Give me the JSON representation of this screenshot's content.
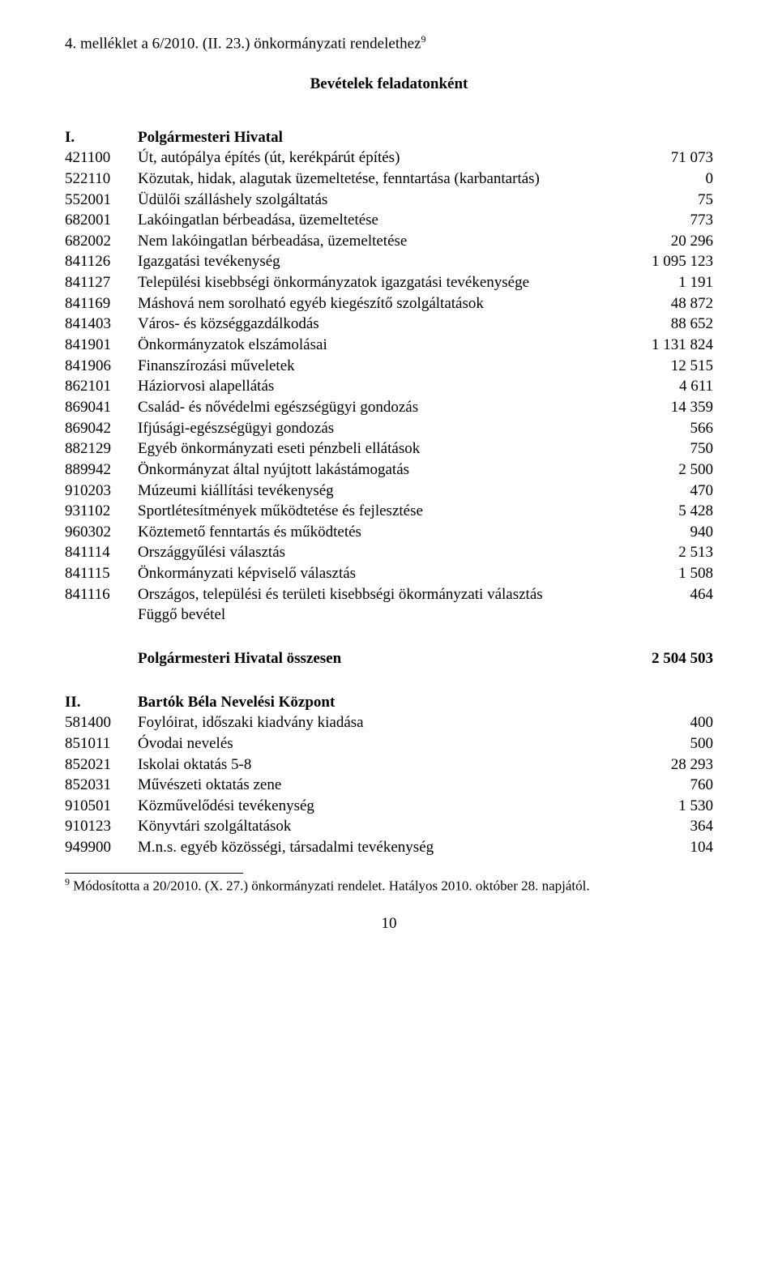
{
  "header": {
    "annex_title": "4. melléklet a 6/2010. (II. 23.) önkormányzati rendelethez",
    "annex_sup": "9",
    "subtitle": "Bevételek feladatonként"
  },
  "section1": {
    "roman": "I.",
    "heading": "Polgármesteri Hivatal",
    "rows": [
      {
        "code": "421100",
        "desc": "Út, autópálya építés (út, kerékpárút építés)",
        "val": "71 073"
      },
      {
        "code": "522110",
        "desc": "Közutak, hidak, alagutak üzemeltetése, fenntartása (karbantartás)",
        "val": "0"
      },
      {
        "code": "552001",
        "desc": "Üdülői szálláshely szolgáltatás",
        "val": "75"
      },
      {
        "code": "682001",
        "desc": "Lakóingatlan bérbeadása, üzemeltetése",
        "val": "773"
      },
      {
        "code": "682002",
        "desc": "Nem lakóingatlan bérbeadása, üzemeltetése",
        "val": "20 296"
      },
      {
        "code": "841126",
        "desc": "Igazgatási tevékenység",
        "val": "1 095 123"
      },
      {
        "code": "841127",
        "desc": "Települési kisebbségi önkormányzatok igazgatási tevékenysége",
        "val": "1 191"
      },
      {
        "code": "841169",
        "desc": "Máshová nem sorolható egyéb kiegészítő szolgáltatások",
        "val": "48 872"
      },
      {
        "code": "841403",
        "desc": "Város- és községgazdálkodás",
        "val": "88 652"
      },
      {
        "code": "841901",
        "desc": "Önkormányzatok elszámolásai",
        "val": "1 131 824"
      },
      {
        "code": "841906",
        "desc": "Finanszírozási műveletek",
        "val": "12 515"
      },
      {
        "code": "862101",
        "desc": "Háziorvosi alapellátás",
        "val": "4 611"
      },
      {
        "code": "869041",
        "desc": "Család- és nővédelmi egészségügyi gondozás",
        "val": "14 359"
      },
      {
        "code": "869042",
        "desc": "Ifjúsági-egészségügyi gondozás",
        "val": "566"
      },
      {
        "code": "882129",
        "desc": "Egyéb önkormányzati eseti pénzbeli ellátások",
        "val": "750"
      },
      {
        "code": "889942",
        "desc": "Önkormányzat által nyújtott lakástámogatás",
        "val": "2 500"
      },
      {
        "code": "910203",
        "desc": "Múzeumi kiállítási tevékenység",
        "val": "470"
      },
      {
        "code": "931102",
        "desc": "Sportlétesítmények működtetése és fejlesztése",
        "val": "5 428"
      },
      {
        "code": "960302",
        "desc": "Köztemető fenntartás és működtetés",
        "val": "940"
      },
      {
        "code": "841114",
        "desc": "Országgyűlési választás",
        "val": "2 513"
      },
      {
        "code": "841115",
        "desc": "Önkormányzati képviselő választás",
        "val": "1 508"
      },
      {
        "code": "841116",
        "desc": "Országos, települési és területi kisebbségi ökormányzati választás",
        "val": "464"
      },
      {
        "code": "",
        "desc": "Függő bevétel",
        "val": ""
      }
    ],
    "total_label": "Polgármesteri Hivatal összesen",
    "total_val": "2 504 503"
  },
  "section2": {
    "roman": "II.",
    "heading": "Bartók Béla Nevelési Központ",
    "rows": [
      {
        "code": "581400",
        "desc": "Foylóirat, időszaki kiadvány kiadása",
        "val": "400"
      },
      {
        "code": "851011",
        "desc": "Óvodai nevelés",
        "val": "500"
      },
      {
        "code": "852021",
        "desc": "Iskolai oktatás 5-8",
        "val": "28 293"
      },
      {
        "code": "852031",
        "desc": "Művészeti oktatás zene",
        "val": "760"
      },
      {
        "code": "910501",
        "desc": "Közművelődési tevékenység",
        "val": "1 530"
      },
      {
        "code": "910123",
        "desc": "Könyvtári szolgáltatások",
        "val": "364"
      },
      {
        "code": "949900",
        "desc": "M.n.s. egyéb közösségi, társadalmi tevékenység",
        "val": "104"
      }
    ]
  },
  "footnote": {
    "sup": "9",
    "text": " Módosította a 20/2010. (X. 27.) önkormányzati rendelet. Hatályos 2010. október 28. napjától."
  },
  "page_number": "10"
}
